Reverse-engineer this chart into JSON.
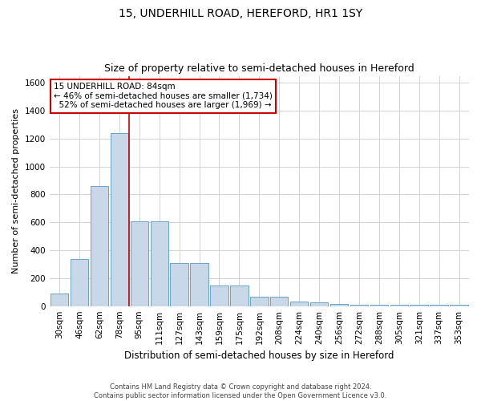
{
  "title": "15, UNDERHILL ROAD, HEREFORD, HR1 1SY",
  "subtitle": "Size of property relative to semi-detached houses in Hereford",
  "xlabel": "Distribution of semi-detached houses by size in Hereford",
  "ylabel": "Number of semi-detached properties",
  "categories": [
    "30sqm",
    "46sqm",
    "62sqm",
    "78sqm",
    "95sqm",
    "111sqm",
    "127sqm",
    "143sqm",
    "159sqm",
    "175sqm",
    "192sqm",
    "208sqm",
    "224sqm",
    "240sqm",
    "256sqm",
    "272sqm",
    "288sqm",
    "305sqm",
    "321sqm",
    "337sqm",
    "353sqm"
  ],
  "values": [
    90,
    335,
    860,
    1240,
    610,
    610,
    310,
    310,
    150,
    150,
    65,
    65,
    35,
    25,
    15,
    10,
    10,
    10,
    10,
    10,
    10
  ],
  "bar_color": "#c8d8e8",
  "bar_edge_color": "#5599bb",
  "property_size": "84sqm",
  "pct_smaller": 46,
  "n_smaller": 1734,
  "pct_larger": 52,
  "n_larger": 1969,
  "annotation_box_color": "#ffffff",
  "annotation_box_edge": "#cc0000",
  "red_line_x": 3.5,
  "ylim": [
    0,
    1650
  ],
  "yticks": [
    0,
    200,
    400,
    600,
    800,
    1000,
    1200,
    1400,
    1600
  ],
  "grid_color": "#cccccc",
  "footer_line1": "Contains HM Land Registry data © Crown copyright and database right 2024.",
  "footer_line2": "Contains public sector information licensed under the Open Government Licence v3.0.",
  "title_fontsize": 10,
  "subtitle_fontsize": 9,
  "xlabel_fontsize": 8.5,
  "ylabel_fontsize": 8,
  "tick_fontsize": 7.5,
  "annot_fontsize": 7.5,
  "footer_fontsize": 6,
  "bar_width": 0.9
}
